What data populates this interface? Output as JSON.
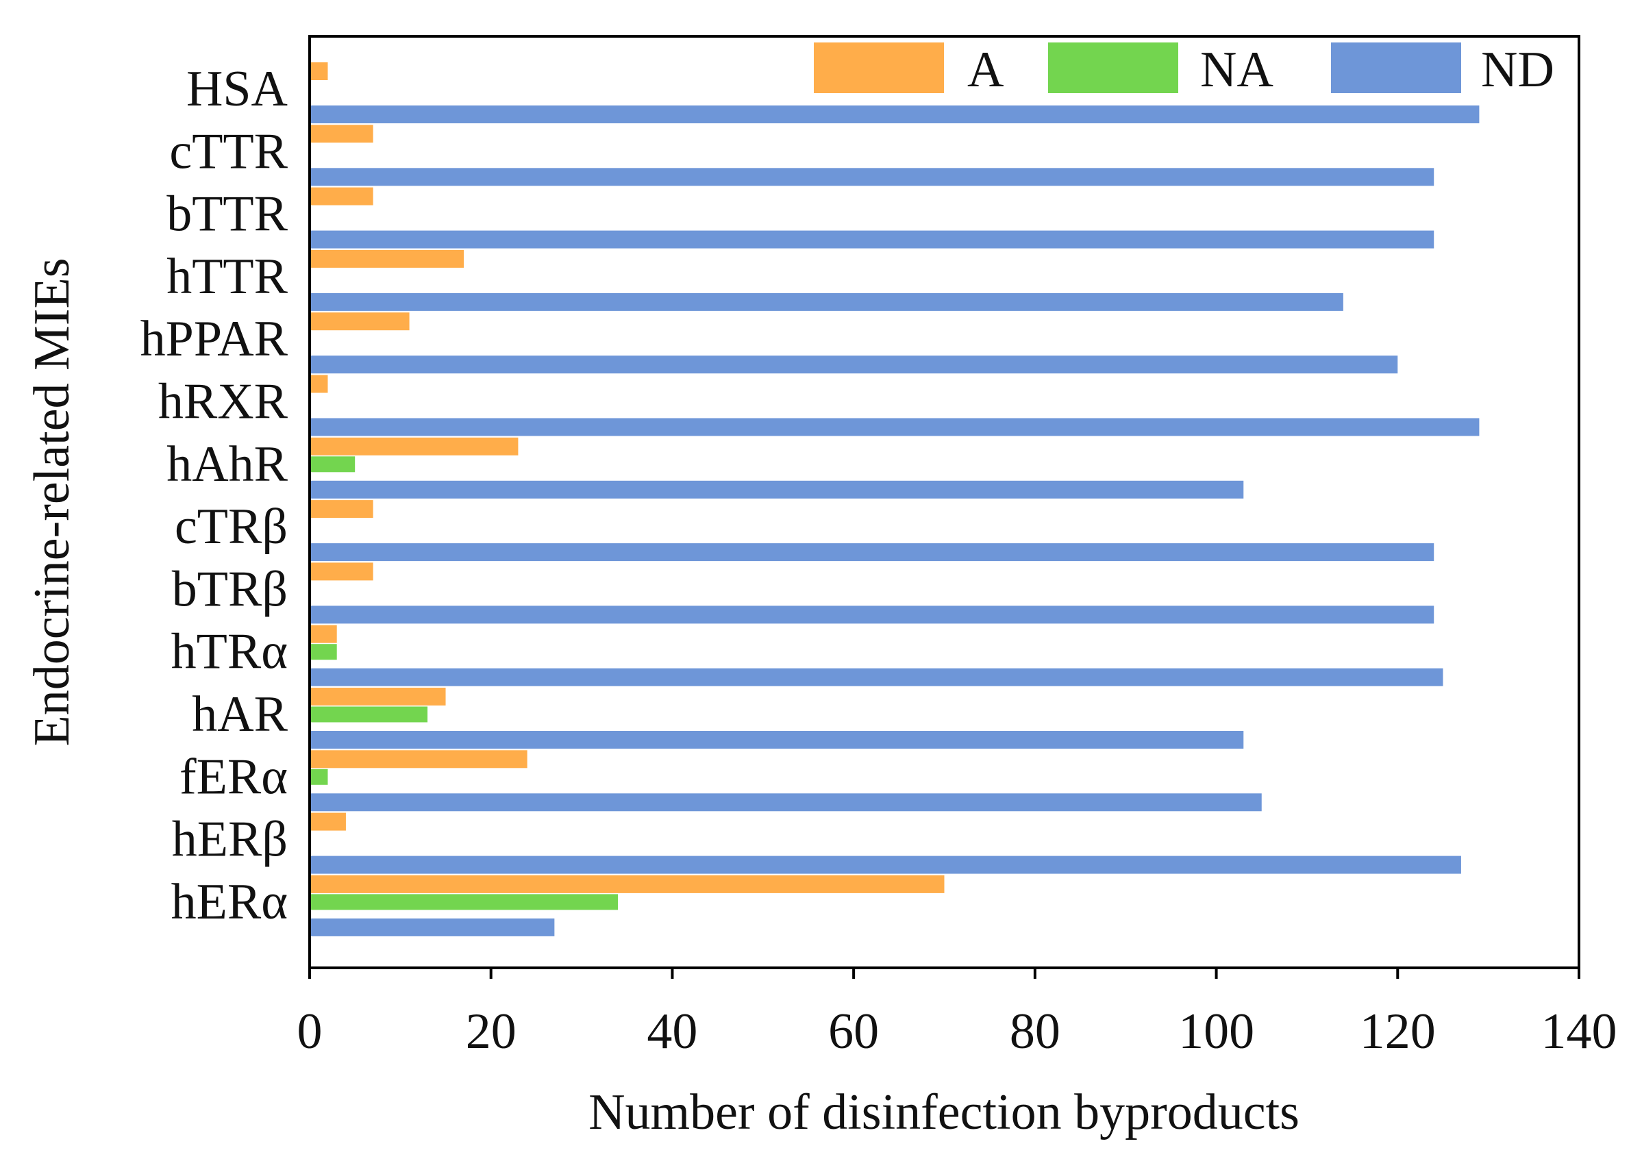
{
  "chart_data": {
    "type": "bar",
    "orientation": "horizontal",
    "xlabel": "Number of disinfection byproducts",
    "ylabel": "Endocrine-related MIEs",
    "xlim": [
      0,
      140
    ],
    "xticks": [
      0,
      20,
      40,
      60,
      80,
      100,
      120,
      140
    ],
    "grid": false,
    "legend_position": "top-right",
    "categories": [
      "HSA",
      "cTTR",
      "bTTR",
      "hTTR",
      "hPPAR",
      "hRXR",
      "hAhR",
      "cTRβ",
      "bTRβ",
      "hTRα",
      "hAR",
      "fERα",
      "hERβ",
      "hERα"
    ],
    "series": [
      {
        "name": "A",
        "color": "#FFAD4A",
        "values": [
          2,
          7,
          7,
          17,
          11,
          2,
          23,
          7,
          7,
          3,
          15,
          24,
          4,
          70
        ]
      },
      {
        "name": "NA",
        "color": "#73D54F",
        "values": [
          0,
          0,
          0,
          0,
          0,
          0,
          5,
          0,
          0,
          3,
          13,
          2,
          0,
          34
        ]
      },
      {
        "name": "ND",
        "color": "#6E96D8",
        "values": [
          129,
          124,
          124,
          114,
          120,
          129,
          103,
          124,
          124,
          125,
          103,
          105,
          127,
          27
        ]
      }
    ]
  }
}
